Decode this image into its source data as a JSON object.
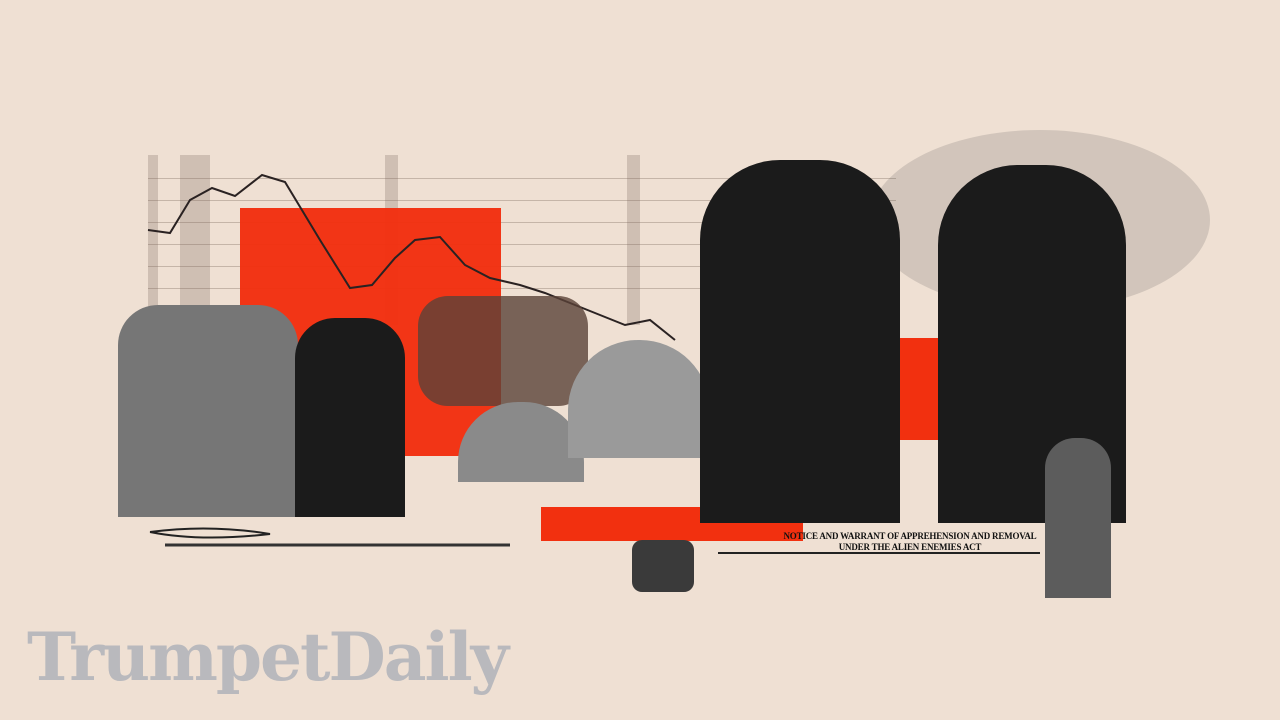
{
  "notice": {
    "line1": "NOTICE AND WARRANT OF APPREHENSION AND REMOVAL",
    "line2": "UNDER THE ALIEN ENEMIES ACT"
  },
  "logo": {
    "text": "TrumpetDaily"
  },
  "colors": {
    "background": "#efe0d3",
    "accent": "#f2300f",
    "logo": "#b9b9bd"
  }
}
